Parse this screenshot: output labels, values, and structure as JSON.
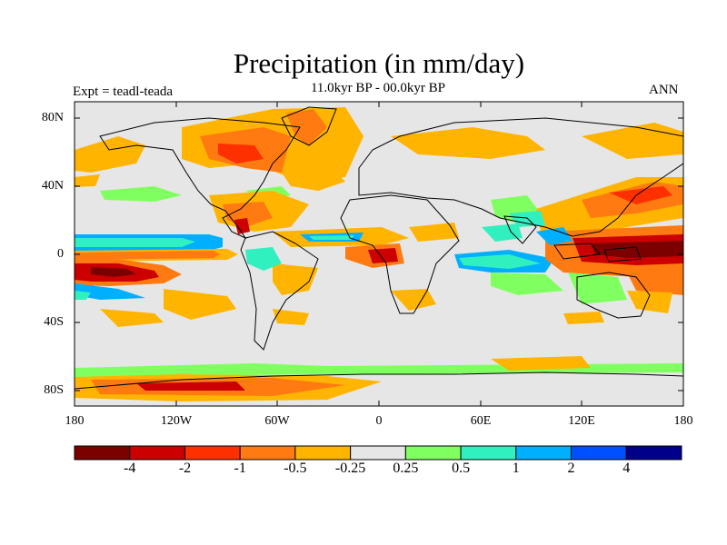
{
  "title": "Precipitation (in mm/day)",
  "subtitle": "11.0kyr BP - 00.0kyr BP",
  "left_label": "Expt = teadl-teada",
  "right_label": "ANN",
  "lat_ticks": [
    "80N",
    "40N",
    "0",
    "40S",
    "80S"
  ],
  "lon_ticks": [
    "180",
    "120W",
    "60W",
    "0",
    "60E",
    "120E",
    "180"
  ],
  "colorbar": {
    "colors": [
      "#7b0000",
      "#cc0000",
      "#ff3000",
      "#ff7a10",
      "#ffb400",
      "#e6e6e6",
      "#80ff60",
      "#30f0c0",
      "#00b0ff",
      "#0050ff",
      "#00008b"
    ],
    "labels": [
      "-4",
      "-2",
      "-1",
      "-0.5",
      "-0.25",
      "0.25",
      "0.5",
      "1",
      "2",
      "4"
    ]
  },
  "map": {
    "background": "#e6e6e6",
    "palette": {
      "dark_red": "#7b0000",
      "red": "#cc0000",
      "orange_red": "#ff3000",
      "orange": "#ff7a10",
      "gold": "#ffb400",
      "light_green": "#80ff60",
      "aqua": "#30f0c0",
      "sky": "#00b0ff",
      "blue": "#0050ff",
      "navy": "#00008b"
    }
  }
}
